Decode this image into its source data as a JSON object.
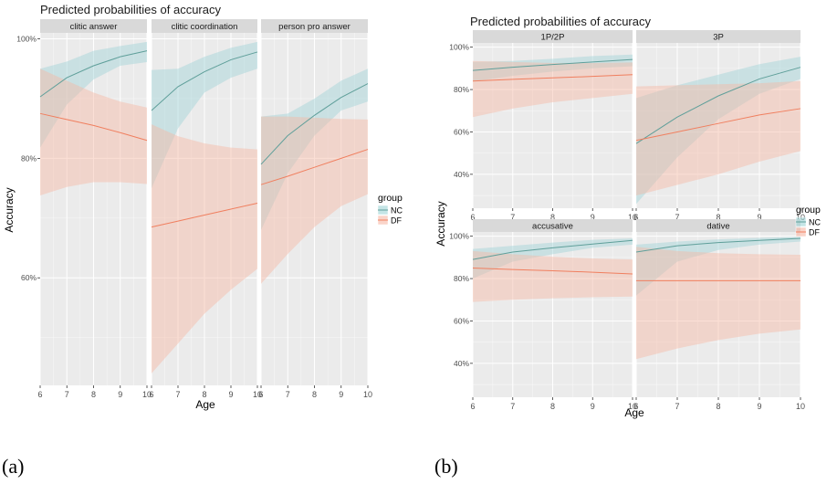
{
  "figure": {
    "caption_a": "(a)",
    "caption_b": "(b)"
  },
  "colors": {
    "panel_bg": "#ebebeb",
    "grid": "#ffffff",
    "strip_bg": "#d9d9d9",
    "nc_line": "#5f9f9a",
    "nc_fill": "#9fd3d6",
    "df_line": "#f07f5f",
    "df_fill": "#f6b8a5"
  },
  "chart_data": [
    {
      "type": "line",
      "title": "Predicted probabilities of accuracy",
      "xlabel": "Age",
      "ylabel": "Accuracy",
      "x": [
        6,
        7,
        8,
        9,
        10
      ],
      "xlim": [
        6,
        10
      ],
      "ylim": [
        0.42,
        1.01
      ],
      "yticks": [
        0.6,
        0.8,
        1.0
      ],
      "ytick_labels": [
        "60%",
        "80%",
        "100%"
      ],
      "legend": {
        "title": "group",
        "entries": [
          "NC",
          "DF"
        ],
        "position": "right"
      },
      "grid": true,
      "facets": [
        {
          "label": "clitic answer",
          "series": [
            {
              "name": "NC",
              "values": [
                0.903,
                0.935,
                0.955,
                0.97,
                0.98
              ],
              "lower": [
                0.818,
                0.89,
                0.932,
                0.955,
                0.961
              ],
              "upper": [
                0.95,
                0.962,
                0.98,
                0.988,
                0.995
              ]
            },
            {
              "name": "DF",
              "values": [
                0.875,
                0.865,
                0.855,
                0.843,
                0.83
              ],
              "lower": [
                0.738,
                0.752,
                0.76,
                0.76,
                0.757
              ],
              "upper": [
                0.95,
                0.93,
                0.91,
                0.895,
                0.885
              ]
            }
          ]
        },
        {
          "label": "clitic coordination",
          "series": [
            {
              "name": "NC",
              "values": [
                0.88,
                0.92,
                0.945,
                0.965,
                0.978
              ],
              "lower": [
                0.75,
                0.85,
                0.91,
                0.935,
                0.95
              ],
              "upper": [
                0.948,
                0.95,
                0.97,
                0.985,
                0.995
              ]
            },
            {
              "name": "DF",
              "values": [
                0.685,
                0.695,
                0.705,
                0.715,
                0.725
              ],
              "lower": [
                0.44,
                0.49,
                0.54,
                0.58,
                0.615
              ],
              "upper": [
                0.857,
                0.837,
                0.825,
                0.818,
                0.815
              ]
            }
          ]
        },
        {
          "label": "person pro answer",
          "series": [
            {
              "name": "NC",
              "values": [
                0.79,
                0.838,
                0.872,
                0.902,
                0.925
              ],
              "lower": [
                0.68,
                0.775,
                0.838,
                0.88,
                0.895
              ],
              "upper": [
                0.87,
                0.875,
                0.9,
                0.93,
                0.95
              ]
            },
            {
              "name": "DF",
              "values": [
                0.756,
                0.77,
                0.785,
                0.8,
                0.815
              ],
              "lower": [
                0.59,
                0.64,
                0.685,
                0.72,
                0.74
              ],
              "upper": [
                0.87,
                0.87,
                0.868,
                0.866,
                0.865
              ]
            }
          ]
        }
      ]
    },
    {
      "type": "line",
      "title": "Predicted probabilities of accuracy",
      "xlabel": "Age",
      "ylabel": "Accuracy",
      "x": [
        6,
        7,
        8,
        9,
        10
      ],
      "xlim": [
        6,
        10
      ],
      "ylim": [
        0.24,
        1.02
      ],
      "yticks": [
        0.4,
        0.6,
        0.8,
        1.0
      ],
      "ytick_labels": [
        "40%",
        "60%",
        "80%",
        "100%"
      ],
      "legend": {
        "title": "group",
        "entries": [
          "NC",
          "DF"
        ],
        "position": "right"
      },
      "grid": true,
      "facets": [
        {
          "label": "1P/2P",
          "series": [
            {
              "name": "NC",
              "values": [
                0.89,
                0.905,
                0.918,
                0.93,
                0.942
              ],
              "lower": [
                0.838,
                0.865,
                0.885,
                0.9,
                0.91
              ],
              "upper": [
                0.93,
                0.935,
                0.945,
                0.958,
                0.965
              ]
            },
            {
              "name": "DF",
              "values": [
                0.84,
                0.848,
                0.855,
                0.862,
                0.87
              ],
              "lower": [
                0.67,
                0.71,
                0.74,
                0.76,
                0.78
              ],
              "upper": [
                0.935,
                0.93,
                0.925,
                0.925,
                0.928
              ]
            }
          ]
        },
        {
          "label": "3P",
          "series": [
            {
              "name": "NC",
              "values": [
                0.545,
                0.67,
                0.77,
                0.85,
                0.905
              ],
              "lower": [
                0.26,
                0.48,
                0.66,
                0.78,
                0.85
              ],
              "upper": [
                0.76,
                0.82,
                0.87,
                0.92,
                0.955
              ]
            },
            {
              "name": "DF",
              "values": [
                0.56,
                0.6,
                0.64,
                0.68,
                0.71
              ],
              "lower": [
                0.3,
                0.35,
                0.4,
                0.46,
                0.51
              ],
              "upper": [
                0.815,
                0.82,
                0.825,
                0.83,
                0.84
              ]
            }
          ]
        },
        {
          "label": "accusative",
          "series": [
            {
              "name": "NC",
              "values": [
                0.89,
                0.925,
                0.945,
                0.963,
                0.98
              ],
              "lower": [
                0.8,
                0.88,
                0.915,
                0.945,
                0.96
              ],
              "upper": [
                0.94,
                0.955,
                0.97,
                0.983,
                0.99
              ]
            },
            {
              "name": "DF",
              "values": [
                0.85,
                0.843,
                0.837,
                0.83,
                0.822
              ],
              "lower": [
                0.69,
                0.7,
                0.707,
                0.712,
                0.715
              ],
              "upper": [
                0.93,
                0.915,
                0.903,
                0.895,
                0.89
              ]
            }
          ]
        },
        {
          "label": "dative",
          "series": [
            {
              "name": "NC",
              "values": [
                0.925,
                0.955,
                0.97,
                0.98,
                0.99
              ],
              "lower": [
                0.72,
                0.88,
                0.935,
                0.96,
                0.975
              ],
              "upper": [
                0.96,
                0.975,
                0.985,
                0.992,
                0.998
              ]
            },
            {
              "name": "DF",
              "values": [
                0.79,
                0.79,
                0.79,
                0.79,
                0.79
              ],
              "lower": [
                0.42,
                0.47,
                0.51,
                0.54,
                0.56
              ],
              "upper": [
                0.95,
                0.93,
                0.92,
                0.915,
                0.912
              ]
            }
          ]
        }
      ]
    }
  ]
}
